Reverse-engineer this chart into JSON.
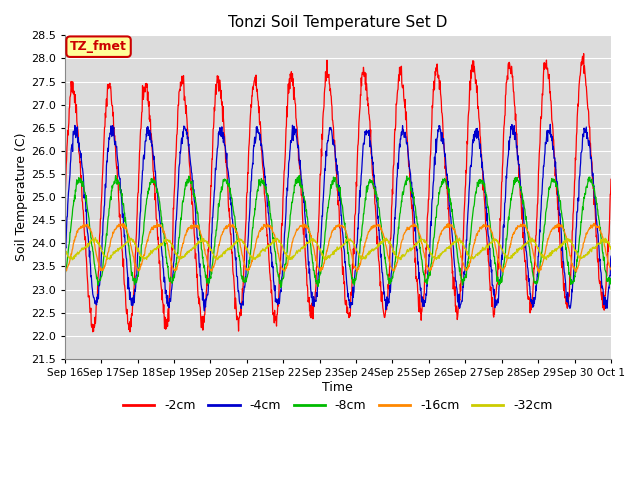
{
  "title": "Tonzi Soil Temperature Set D",
  "xlabel": "Time",
  "ylabel": "Soil Temperature (C)",
  "ylim": [
    21.5,
    28.5
  ],
  "yticks": [
    21.5,
    22.0,
    22.5,
    23.0,
    23.5,
    24.0,
    24.5,
    25.0,
    25.5,
    26.0,
    26.5,
    27.0,
    27.5,
    28.0,
    28.5
  ],
  "xtick_labels": [
    "Sep 16",
    "Sep 17",
    "Sep 18",
    "Sep 19",
    "Sep 20",
    "Sep 21",
    "Sep 22",
    "Sep 23",
    "Sep 24",
    "Sep 25",
    "Sep 26",
    "Sep 27",
    "Sep 28",
    "Sep 29",
    "Sep 30",
    "Oct 1"
  ],
  "bg_color": "#dcdcdc",
  "grid_color": "#ffffff",
  "series": [
    {
      "label": "-2cm",
      "color": "#ff0000",
      "amp1": 2.55,
      "amp2": 0.3,
      "mean": 24.75,
      "phase1": 0.0,
      "phase2": 0.0
    },
    {
      "label": "-4cm",
      "color": "#0000cd",
      "amp1": 1.85,
      "amp2": 0.2,
      "mean": 24.65,
      "phase1": 0.08,
      "phase2": 0.08
    },
    {
      "label": "-8cm",
      "color": "#00bb00",
      "amp1": 1.1,
      "amp2": 0.1,
      "mean": 24.35,
      "phase1": 0.18,
      "phase2": 0.18
    },
    {
      "label": "-16cm",
      "color": "#ff8800",
      "amp1": 0.48,
      "amp2": 0.1,
      "mean": 24.0,
      "phase1": 0.28,
      "phase2": 0.28
    },
    {
      "label": "-32cm",
      "color": "#cccc00",
      "amp1": 0.18,
      "amp2": 0.05,
      "mean": 23.88,
      "phase1": 0.5,
      "phase2": 0.5
    }
  ],
  "legend_label": "TZ_fmet",
  "legend_bg": "#ffff99",
  "legend_border": "#cc0000",
  "figsize": [
    6.4,
    4.8
  ],
  "dpi": 100
}
